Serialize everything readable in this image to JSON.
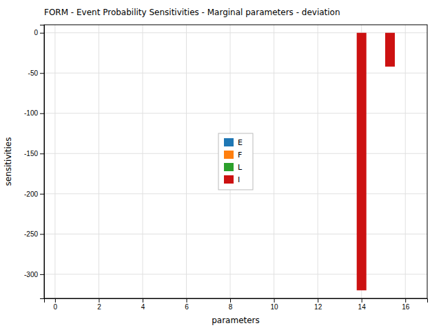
{
  "chart_data": {
    "type": "bar",
    "title": "FORM - Event Probability Sensitivities - Marginal parameters - deviation",
    "xlabel": "parameters",
    "ylabel": "sensitivities",
    "x": [
      14.0,
      15.3
    ],
    "series": [
      {
        "name": "E",
        "color": "#1f77b4",
        "values": [
          null,
          null
        ]
      },
      {
        "name": "F",
        "color": "#ff7f0e",
        "values": [
          null,
          null
        ]
      },
      {
        "name": "L",
        "color": "#2ca02c",
        "values": [
          null,
          null
        ]
      },
      {
        "name": "I",
        "color": "#cc1111",
        "values": [
          -320,
          -42
        ]
      }
    ],
    "xlim": [
      -0.5,
      17
    ],
    "ylim": [
      -330,
      10
    ],
    "xticks": [
      0,
      2,
      4,
      6,
      8,
      10,
      12,
      14,
      16
    ],
    "yticks": [
      0,
      -50,
      -100,
      -150,
      -200,
      -250,
      -300
    ],
    "grid": true,
    "legend": "center"
  }
}
